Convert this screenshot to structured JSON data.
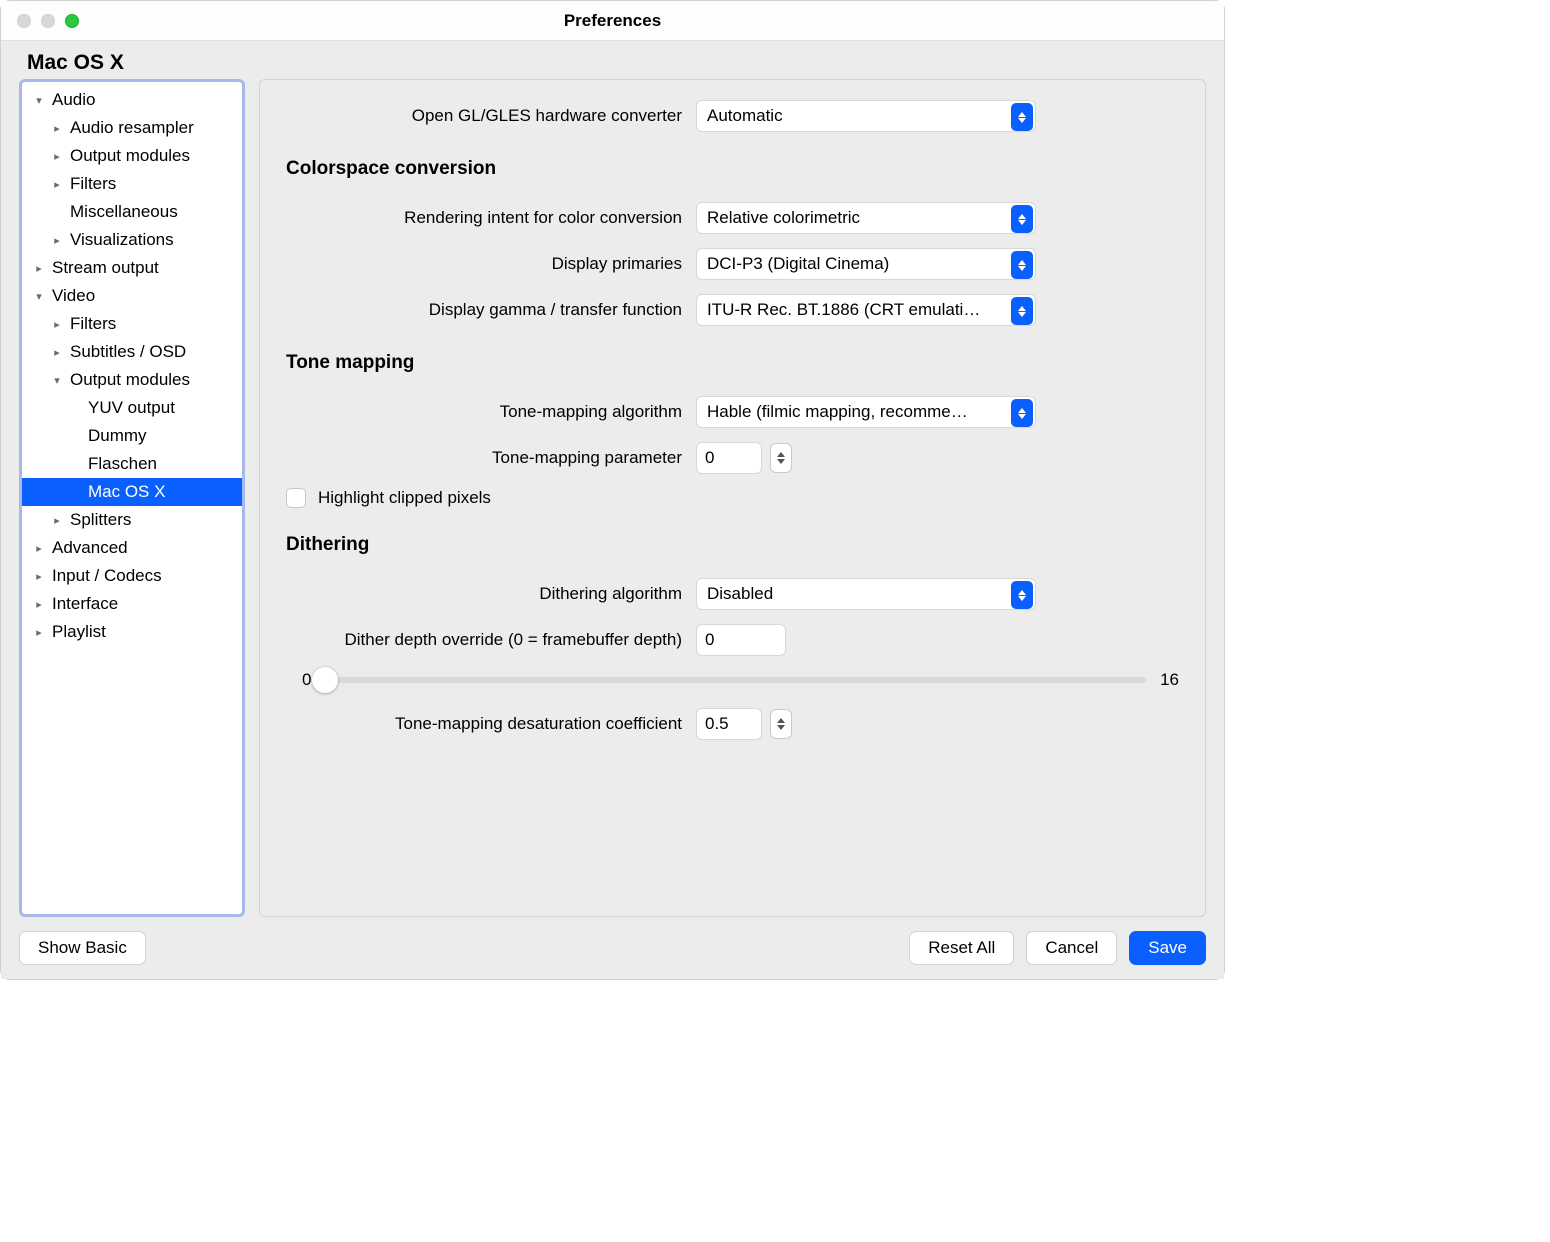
{
  "window": {
    "title": "Preferences"
  },
  "page_title": "Mac OS X",
  "sidebar": {
    "items": [
      {
        "label": "Audio",
        "indent": 10,
        "chevron": "down"
      },
      {
        "label": "Audio resampler",
        "indent": 28,
        "chevron": "right"
      },
      {
        "label": "Output modules",
        "indent": 28,
        "chevron": "right"
      },
      {
        "label": "Filters",
        "indent": 28,
        "chevron": "right"
      },
      {
        "label": "Miscellaneous",
        "indent": 28,
        "chevron": "none"
      },
      {
        "label": "Visualizations",
        "indent": 28,
        "chevron": "right"
      },
      {
        "label": "Stream output",
        "indent": 10,
        "chevron": "right"
      },
      {
        "label": "Video",
        "indent": 10,
        "chevron": "down"
      },
      {
        "label": "Filters",
        "indent": 28,
        "chevron": "right"
      },
      {
        "label": "Subtitles / OSD",
        "indent": 28,
        "chevron": "right"
      },
      {
        "label": "Output modules",
        "indent": 28,
        "chevron": "down"
      },
      {
        "label": "YUV output",
        "indent": 46,
        "chevron": "none"
      },
      {
        "label": "Dummy",
        "indent": 46,
        "chevron": "none"
      },
      {
        "label": "Flaschen",
        "indent": 46,
        "chevron": "none"
      },
      {
        "label": "Mac OS X",
        "indent": 46,
        "chevron": "none",
        "selected": true
      },
      {
        "label": "Splitters",
        "indent": 28,
        "chevron": "right"
      },
      {
        "label": "Advanced",
        "indent": 10,
        "chevron": "right"
      },
      {
        "label": "Input / Codecs",
        "indent": 10,
        "chevron": "right"
      },
      {
        "label": "Interface",
        "indent": 10,
        "chevron": "right"
      },
      {
        "label": "Playlist",
        "indent": 10,
        "chevron": "right"
      }
    ]
  },
  "detail": {
    "gl_converter": {
      "label": "Open GL/GLES hardware converter",
      "value": "Automatic"
    },
    "section_colorspace": "Colorspace conversion",
    "rendering_intent": {
      "label": "Rendering intent for color conversion",
      "value": "Relative colorimetric"
    },
    "display_primaries": {
      "label": "Display primaries",
      "value": "DCI-P3 (Digital Cinema)"
    },
    "display_gamma": {
      "label": "Display gamma / transfer function",
      "value": "ITU-R Rec. BT.1886 (CRT emulati…"
    },
    "section_tone": "Tone mapping",
    "tone_algo": {
      "label": "Tone-mapping algorithm",
      "value": "Hable (filmic mapping, recomme…"
    },
    "tone_param": {
      "label": "Tone-mapping parameter",
      "value": "0"
    },
    "highlight_clipped": {
      "label": "Highlight clipped pixels",
      "checked": false
    },
    "section_dither": "Dithering",
    "dither_algo": {
      "label": "Dithering algorithm",
      "value": "Disabled"
    },
    "dither_depth": {
      "label": "Dither depth override (0 = framebuffer depth)",
      "value": "0"
    },
    "dither_slider": {
      "min_label": "0",
      "max_label": "16",
      "min": 0,
      "max": 16,
      "value": 0
    },
    "desat_coeff": {
      "label": "Tone-mapping desaturation coefficient",
      "value": "0.5"
    }
  },
  "footer": {
    "show_basic": "Show Basic",
    "reset_all": "Reset All",
    "cancel": "Cancel",
    "save": "Save"
  },
  "colors": {
    "accent": "#0a60ff",
    "sidebar_focus": "#a6b9ea",
    "panel_bg": "#ececec"
  }
}
